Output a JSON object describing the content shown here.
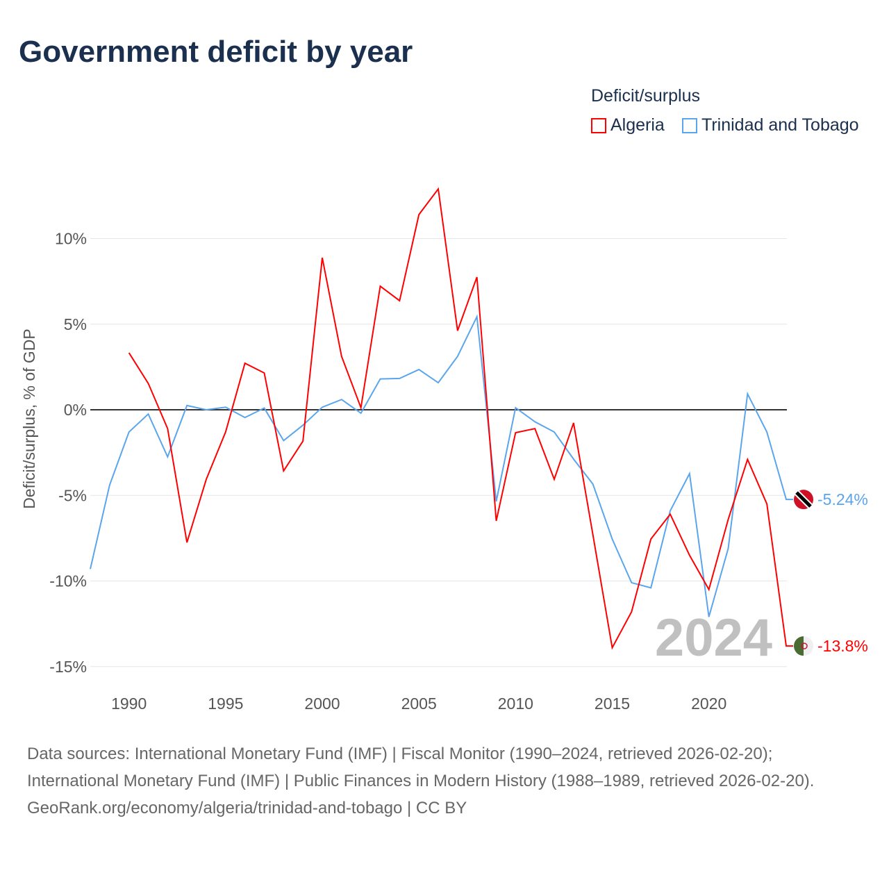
{
  "title": "Government deficit by year",
  "legend": {
    "title": "Deficit/surplus",
    "items": [
      {
        "label": "Algeria",
        "color": "#ff0000"
      },
      {
        "label": "Trinidad and Tobago",
        "color": "#5aa5ec"
      }
    ]
  },
  "chart_data": {
    "type": "line",
    "title": "Government deficit by year",
    "ylabel": "Deficit/surplus, % of GDP",
    "xlabel": "",
    "xlim": [
      1988,
      2024
    ],
    "ylim": [
      -15,
      10
    ],
    "x_ticks": [
      1990,
      1995,
      2000,
      2005,
      2010,
      2015,
      2020
    ],
    "y_ticks": [
      {
        "v": 10,
        "label": "10%"
      },
      {
        "v": 5,
        "label": "5%"
      },
      {
        "v": 0,
        "label": "0%"
      },
      {
        "v": -5,
        "label": "-5%"
      },
      {
        "v": -10,
        "label": "-10%"
      },
      {
        "v": -15,
        "label": "-15%"
      }
    ],
    "year_watermark": "2024",
    "series": [
      {
        "name": "Algeria",
        "color": "#ff0000",
        "end_label": "-13.8%",
        "start": 1990,
        "values": [
          3.33,
          1.54,
          -1.1,
          -7.75,
          -4.06,
          -1.3,
          2.72,
          2.15,
          -3.57,
          -1.83,
          8.88,
          3.12,
          0.12,
          7.22,
          6.37,
          11.4,
          12.9,
          4.62,
          7.75,
          -6.49,
          -1.34,
          -1.1,
          -4.06,
          -0.77,
          -7.3,
          -13.9,
          -11.8,
          -7.55,
          -6.1,
          -8.5,
          -10.5,
          -6.4,
          -2.9,
          -5.5,
          -13.8
        ]
      },
      {
        "name": "Trinidad and Tobago",
        "color": "#5aa5ec",
        "end_label": "-5.24%",
        "start": 1988,
        "values": [
          -9.3,
          -4.4,
          -1.3,
          -0.25,
          -2.75,
          0.25,
          0,
          0.15,
          -0.45,
          0.1,
          -1.8,
          -0.9,
          0.15,
          0.6,
          -0.2,
          1.8,
          1.83,
          2.35,
          1.58,
          3.12,
          5.44,
          -5.35,
          0.12,
          -0.7,
          -1.3,
          -2.88,
          -4.34,
          -7.55,
          -10.1,
          -10.4,
          -5.9,
          -3.73,
          -12.1,
          -8.1,
          0.93,
          -1.3,
          -5.24
        ]
      }
    ]
  },
  "sources": {
    "line1": "Data sources: International Monetary Fund (IMF) | Fiscal Monitor (1990–2024, retrieved 2026-02-20); International Monetary Fund (IMF) | Public Finances in Modern History (1988–1989, retrieved 2026-02-20).",
    "line2": "GeoRank.org/economy/algeria/trinidad-and-tobago | CC BY"
  }
}
